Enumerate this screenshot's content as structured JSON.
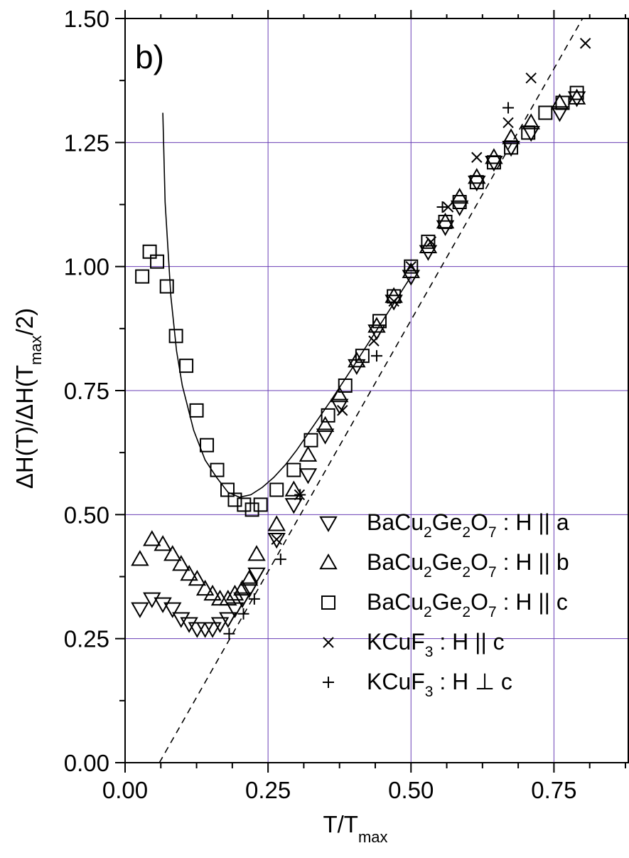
{
  "chart_data": {
    "type": "scatter",
    "panel_label": "b)",
    "xlabel": {
      "main": "T/T",
      "sub": "max"
    },
    "ylabel": {
      "p1": "ΔH(T)/ΔH(T",
      "sub": "max",
      "p2": "/2)"
    },
    "xlim": [
      0.0,
      0.88
    ],
    "ylim": [
      0.0,
      1.5
    ],
    "x_ticks": [
      "0.00",
      "0.25",
      "0.50",
      "0.75"
    ],
    "x_tick_values": [
      0.0,
      0.25,
      0.5,
      0.75
    ],
    "y_ticks": [
      "0.00",
      "0.25",
      "0.50",
      "0.75",
      "1.00",
      "1.25",
      "1.50"
    ],
    "y_tick_values": [
      0.0,
      0.25,
      0.5,
      0.75,
      1.0,
      1.25,
      1.5
    ],
    "grid": true,
    "grid_color": "#6a3fb5",
    "legend_position": "lower-right",
    "legend": [
      {
        "marker": "triangle-down",
        "label": [
          {
            "t": "BaCu"
          },
          {
            "t": "2",
            "sub": true
          },
          {
            "t": "Ge"
          },
          {
            "t": "2",
            "sub": true
          },
          {
            "t": "O"
          },
          {
            "t": "7",
            "sub": true
          },
          {
            "t": " : H || a"
          }
        ]
      },
      {
        "marker": "triangle-up",
        "label": [
          {
            "t": "BaCu"
          },
          {
            "t": "2",
            "sub": true
          },
          {
            "t": "Ge"
          },
          {
            "t": "2",
            "sub": true
          },
          {
            "t": "O"
          },
          {
            "t": "7",
            "sub": true
          },
          {
            "t": " : H || b"
          }
        ]
      },
      {
        "marker": "square",
        "label": [
          {
            "t": "BaCu"
          },
          {
            "t": "2",
            "sub": true
          },
          {
            "t": "Ge"
          },
          {
            "t": "2",
            "sub": true
          },
          {
            "t": "O"
          },
          {
            "t": "7",
            "sub": true
          },
          {
            "t": " : H || c"
          }
        ]
      },
      {
        "marker": "x",
        "label": [
          {
            "t": "KCuF"
          },
          {
            "t": "3",
            "sub": true
          },
          {
            "t": " : H || c"
          }
        ]
      },
      {
        "marker": "plus",
        "label": [
          {
            "t": "KCuF"
          },
          {
            "t": "3",
            "sub": true
          },
          {
            "t": " : H ⊥ c"
          }
        ]
      }
    ],
    "series": [
      {
        "marker": "triangle-down",
        "x": [
          0.026,
          0.047,
          0.066,
          0.083,
          0.098,
          0.112,
          0.126,
          0.14,
          0.153,
          0.166,
          0.18,
          0.192,
          0.205,
          0.217,
          0.23,
          0.265,
          0.295,
          0.32,
          0.35,
          0.375,
          0.405,
          0.44,
          0.47,
          0.5,
          0.53,
          0.56,
          0.585,
          0.615,
          0.645,
          0.675,
          0.71,
          0.76,
          0.79
        ],
        "y": [
          0.31,
          0.33,
          0.32,
          0.31,
          0.29,
          0.28,
          0.27,
          0.27,
          0.27,
          0.28,
          0.29,
          0.31,
          0.33,
          0.35,
          0.38,
          0.45,
          0.52,
          0.58,
          0.66,
          0.72,
          0.8,
          0.87,
          0.93,
          0.98,
          1.03,
          1.08,
          1.12,
          1.17,
          1.21,
          1.24,
          1.27,
          1.31,
          1.34
        ]
      },
      {
        "marker": "triangle-up",
        "x": [
          0.026,
          0.047,
          0.066,
          0.083,
          0.098,
          0.112,
          0.126,
          0.14,
          0.153,
          0.166,
          0.18,
          0.192,
          0.205,
          0.217,
          0.23,
          0.265,
          0.295,
          0.32,
          0.35,
          0.375,
          0.405,
          0.44,
          0.47,
          0.5,
          0.53,
          0.56,
          0.585,
          0.615,
          0.645,
          0.675,
          0.71,
          0.76,
          0.79
        ],
        "y": [
          0.41,
          0.45,
          0.44,
          0.42,
          0.4,
          0.38,
          0.37,
          0.35,
          0.34,
          0.33,
          0.33,
          0.34,
          0.35,
          0.37,
          0.42,
          0.48,
          0.55,
          0.62,
          0.68,
          0.74,
          0.81,
          0.88,
          0.94,
          0.99,
          1.04,
          1.09,
          1.14,
          1.18,
          1.22,
          1.26,
          1.29,
          1.33,
          1.34
        ]
      },
      {
        "marker": "square",
        "x": [
          0.03,
          0.043,
          0.056,
          0.073,
          0.089,
          0.107,
          0.125,
          0.143,
          0.161,
          0.179,
          0.192,
          0.208,
          0.222,
          0.237,
          0.265,
          0.295,
          0.325,
          0.355,
          0.385,
          0.415,
          0.445,
          0.47,
          0.5,
          0.53,
          0.56,
          0.585,
          0.615,
          0.645,
          0.675,
          0.705,
          0.735,
          0.765,
          0.79
        ],
        "y": [
          0.98,
          1.03,
          1.01,
          0.96,
          0.86,
          0.8,
          0.71,
          0.64,
          0.59,
          0.55,
          0.53,
          0.52,
          0.51,
          0.52,
          0.55,
          0.59,
          0.65,
          0.7,
          0.76,
          0.82,
          0.89,
          0.94,
          1.0,
          1.05,
          1.09,
          1.13,
          1.17,
          1.21,
          1.24,
          1.27,
          1.31,
          1.33,
          1.35
        ]
      },
      {
        "marker": "x",
        "x": [
          0.265,
          0.305,
          0.38,
          0.435,
          0.47,
          0.5,
          0.535,
          0.565,
          0.615,
          0.67,
          0.71,
          0.805
        ],
        "y": [
          0.45,
          0.54,
          0.71,
          0.85,
          0.93,
          1.0,
          1.05,
          1.12,
          1.22,
          1.29,
          1.38,
          1.45
        ]
      },
      {
        "marker": "plus",
        "x": [
          0.182,
          0.207,
          0.226,
          0.272,
          0.306,
          0.44,
          0.555,
          0.67
        ],
        "y": [
          0.26,
          0.3,
          0.33,
          0.41,
          0.54,
          0.82,
          1.12,
          1.32
        ]
      }
    ],
    "fit_curve": {
      "style": "solid",
      "x": [
        0.066,
        0.07,
        0.08,
        0.09,
        0.1,
        0.12,
        0.14,
        0.16,
        0.18,
        0.2,
        0.22,
        0.24,
        0.26,
        0.28,
        0.3,
        0.33,
        0.36,
        0.4,
        0.45,
        0.5
      ],
      "y": [
        1.31,
        1.13,
        0.94,
        0.83,
        0.76,
        0.67,
        0.61,
        0.575,
        0.545,
        0.535,
        0.54,
        0.555,
        0.575,
        0.6,
        0.63,
        0.68,
        0.73,
        0.8,
        0.89,
        0.98
      ]
    },
    "linear_fit": {
      "style": "dashed",
      "x": [
        0.06,
        0.8
      ],
      "y": [
        0.0,
        1.5
      ]
    }
  }
}
